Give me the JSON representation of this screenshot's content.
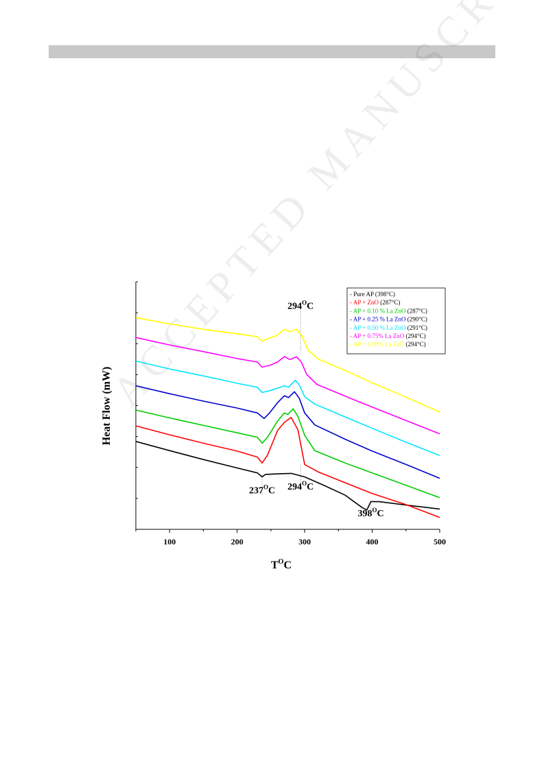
{
  "chart_data": {
    "type": "line",
    "xlabel": "T°C",
    "xlabel_main": "T",
    "xlabel_sup": "O",
    "xlabel_suffix": "C",
    "ylabel": "Heat Flow (mW)",
    "xlim": [
      50,
      500
    ],
    "ylim": [
      0,
      1
    ],
    "xticks": [
      100,
      200,
      300,
      400,
      500
    ],
    "grid": false,
    "legend_position": "top-right",
    "series": [
      {
        "name": "- Pure AP (398°C)",
        "color": "#000000",
        "x": [
          50,
          100,
          150,
          200,
          230,
          237,
          242,
          260,
          280,
          300,
          330,
          360,
          385,
          392,
          398,
          410,
          450,
          500
        ],
        "y": [
          0.355,
          0.318,
          0.282,
          0.248,
          0.228,
          0.212,
          0.222,
          0.224,
          0.226,
          0.212,
          0.176,
          0.138,
          0.088,
          0.078,
          0.112,
          0.112,
          0.098,
          0.082
        ]
      },
      {
        "name": "- AP + ZnO (287°C)",
        "color": "#ff0000",
        "x": [
          50,
          100,
          150,
          200,
          230,
          237,
          245,
          260,
          270,
          280,
          290,
          300,
          320,
          360,
          400,
          450,
          500
        ],
        "y": [
          0.418,
          0.382,
          0.348,
          0.316,
          0.292,
          0.268,
          0.3,
          0.4,
          0.432,
          0.452,
          0.402,
          0.262,
          0.232,
          0.188,
          0.145,
          0.1,
          0.048
        ]
      },
      {
        "name": "- AP + 0.10 % La ZnO (287°C)",
        "color": "#00cc00",
        "x": [
          50,
          100,
          150,
          200,
          230,
          237,
          245,
          260,
          270,
          275,
          283,
          290,
          300,
          315,
          360,
          400,
          450,
          500
        ],
        "y": [
          0.482,
          0.45,
          0.42,
          0.39,
          0.372,
          0.348,
          0.372,
          0.438,
          0.47,
          0.464,
          0.487,
          0.456,
          0.38,
          0.318,
          0.268,
          0.228,
          0.178,
          0.128
        ]
      },
      {
        "name": "- AP + 0.25 % La ZnO (290°C)",
        "color": "#0000cc",
        "x": [
          50,
          100,
          150,
          200,
          230,
          240,
          248,
          260,
          270,
          276,
          285,
          292,
          300,
          315,
          360,
          400,
          450,
          500
        ],
        "y": [
          0.58,
          0.548,
          0.518,
          0.49,
          0.47,
          0.448,
          0.47,
          0.512,
          0.54,
          0.532,
          0.556,
          0.53,
          0.47,
          0.422,
          0.364,
          0.316,
          0.262,
          0.206
        ]
      },
      {
        "name": "- AP + 0.50 % La ZnO (291°C)",
        "color": "#00e5ff",
        "x": [
          50,
          100,
          150,
          200,
          230,
          237,
          248,
          260,
          270,
          276,
          286,
          292,
          300,
          315,
          360,
          400,
          450,
          500
        ],
        "y": [
          0.68,
          0.648,
          0.62,
          0.59,
          0.574,
          0.553,
          0.56,
          0.57,
          0.58,
          0.574,
          0.602,
          0.584,
          0.536,
          0.506,
          0.454,
          0.408,
          0.352,
          0.298
        ]
      },
      {
        "name": "- AP + 0.75% La ZnO (294°C)",
        "color": "#ff00ff",
        "x": [
          50,
          100,
          150,
          200,
          230,
          237,
          248,
          260,
          270,
          278,
          288,
          295,
          303,
          318,
          360,
          400,
          450,
          500
        ],
        "y": [
          0.775,
          0.745,
          0.718,
          0.69,
          0.676,
          0.655,
          0.662,
          0.676,
          0.698,
          0.686,
          0.697,
          0.676,
          0.626,
          0.586,
          0.538,
          0.494,
          0.44,
          0.386
        ]
      },
      {
        "name": "- AP + 1.00% La ZnO (294°C)",
        "color": "#ffff00",
        "x": [
          50,
          100,
          150,
          200,
          230,
          237,
          245,
          258,
          270,
          278,
          288,
          296,
          305,
          320,
          360,
          400,
          450,
          500
        ],
        "y": [
          0.855,
          0.83,
          0.808,
          0.79,
          0.778,
          0.76,
          0.77,
          0.782,
          0.808,
          0.798,
          0.808,
          0.782,
          0.724,
          0.688,
          0.642,
          0.592,
          0.534,
          0.474
        ]
      }
    ],
    "annotations": [
      {
        "main": "294",
        "sup": "O",
        "suffix": "C",
        "x": 294,
        "y": 0.89
      },
      {
        "main": "237",
        "sup": "O",
        "suffix": "C",
        "x": 237,
        "y": 0.145
      },
      {
        "main": "294",
        "sup": "O",
        "suffix": "C",
        "x": 294,
        "y": 0.16
      },
      {
        "main": "398",
        "sup": "O",
        "suffix": "C",
        "x": 398,
        "y": 0.052
      }
    ],
    "dotted_markers_x": [
      294,
      237,
      294,
      398
    ]
  },
  "watermark": "ACCEPTED MANUSCRIPT"
}
